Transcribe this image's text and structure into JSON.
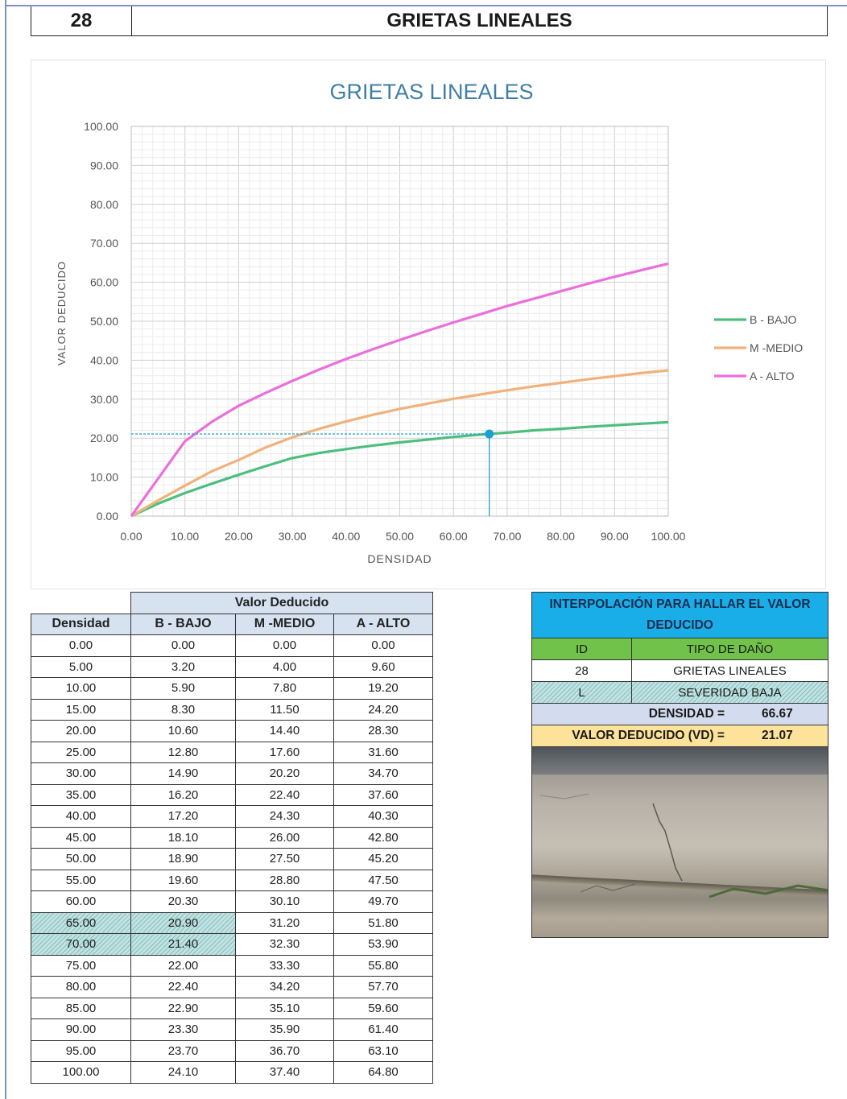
{
  "header": {
    "number": "28",
    "title": "GRIETAS LINEALES"
  },
  "chart_data": {
    "type": "line",
    "title": "GRIETAS  LINEALES",
    "xlabel": "DENSIDAD",
    "ylabel": "VALOR DEDUCIDO",
    "xlim": [
      0,
      100
    ],
    "ylim": [
      0,
      100
    ],
    "x_ticks": [
      "0.00",
      "10.00",
      "20.00",
      "30.00",
      "40.00",
      "50.00",
      "60.00",
      "70.00",
      "80.00",
      "90.00",
      "100.00"
    ],
    "y_ticks": [
      "0.00",
      "10.00",
      "20.00",
      "30.00",
      "40.00",
      "50.00",
      "60.00",
      "70.00",
      "80.00",
      "90.00",
      "100.00"
    ],
    "grid": true,
    "legend_position": "right",
    "x": [
      0,
      5,
      10,
      15,
      20,
      25,
      30,
      35,
      40,
      45,
      50,
      55,
      60,
      65,
      70,
      75,
      80,
      85,
      90,
      95,
      100
    ],
    "series": [
      {
        "name": "B - BAJO",
        "color": "#4cbf7e",
        "values": [
          0,
          3.2,
          5.9,
          8.3,
          10.6,
          12.8,
          14.9,
          16.2,
          17.2,
          18.1,
          18.9,
          19.6,
          20.3,
          20.9,
          21.4,
          22.0,
          22.4,
          22.9,
          23.3,
          23.7,
          24.1
        ]
      },
      {
        "name": "M -MEDIO",
        "color": "#f0b27a",
        "values": [
          0,
          4.0,
          7.8,
          11.5,
          14.4,
          17.6,
          20.2,
          22.4,
          24.3,
          26.0,
          27.5,
          28.8,
          30.1,
          31.2,
          32.3,
          33.3,
          34.2,
          35.1,
          35.9,
          36.7,
          37.4
        ]
      },
      {
        "name": "A - ALTO",
        "color": "#ea6fdc",
        "values": [
          0,
          9.6,
          19.2,
          24.2,
          28.3,
          31.6,
          34.7,
          37.6,
          40.3,
          42.8,
          45.2,
          47.5,
          49.7,
          51.8,
          53.9,
          55.8,
          57.7,
          59.6,
          61.4,
          63.1,
          64.8
        ]
      }
    ],
    "marker": {
      "x": 66.67,
      "y": 21.07,
      "color": "#1aa0d4"
    }
  },
  "table": {
    "group_header": "Valor Deducido",
    "columns": [
      "Densidad",
      "B - BAJO",
      "M -MEDIO",
      "A - ALTO"
    ],
    "rows": [
      [
        "0.00",
        "0.00",
        "0.00",
        "0.00"
      ],
      [
        "5.00",
        "3.20",
        "4.00",
        "9.60"
      ],
      [
        "10.00",
        "5.90",
        "7.80",
        "19.20"
      ],
      [
        "15.00",
        "8.30",
        "11.50",
        "24.20"
      ],
      [
        "20.00",
        "10.60",
        "14.40",
        "28.30"
      ],
      [
        "25.00",
        "12.80",
        "17.60",
        "31.60"
      ],
      [
        "30.00",
        "14.90",
        "20.20",
        "34.70"
      ],
      [
        "35.00",
        "16.20",
        "22.40",
        "37.60"
      ],
      [
        "40.00",
        "17.20",
        "24.30",
        "40.30"
      ],
      [
        "45.00",
        "18.10",
        "26.00",
        "42.80"
      ],
      [
        "50.00",
        "18.90",
        "27.50",
        "45.20"
      ],
      [
        "55.00",
        "19.60",
        "28.80",
        "47.50"
      ],
      [
        "60.00",
        "20.30",
        "30.10",
        "49.70"
      ],
      [
        "65.00",
        "20.90",
        "31.20",
        "51.80"
      ],
      [
        "70.00",
        "21.40",
        "32.30",
        "53.90"
      ],
      [
        "75.00",
        "22.00",
        "33.30",
        "55.80"
      ],
      [
        "80.00",
        "22.40",
        "34.20",
        "57.70"
      ],
      [
        "85.00",
        "22.90",
        "35.10",
        "59.60"
      ],
      [
        "90.00",
        "23.30",
        "35.90",
        "61.40"
      ],
      [
        "95.00",
        "23.70",
        "36.70",
        "63.10"
      ],
      [
        "100.00",
        "24.10",
        "37.40",
        "64.80"
      ]
    ],
    "highlighted_rows": [
      13,
      14
    ]
  },
  "interpolation": {
    "title": "INTERPOLACIÓN PARA HALLAR EL VALOR DEDUCIDO",
    "id_label": "ID",
    "type_label": "TIPO DE DAÑO",
    "id_value": "28",
    "type_value": "GRIETAS LINEALES",
    "severity_code": "L",
    "severity_label": "SEVERIDAD BAJA",
    "density_label": "DENSIDAD =",
    "density_value": "66.67",
    "vd_label": "VALOR DEDUCIDO (VD) =",
    "vd_value": "21.07"
  }
}
